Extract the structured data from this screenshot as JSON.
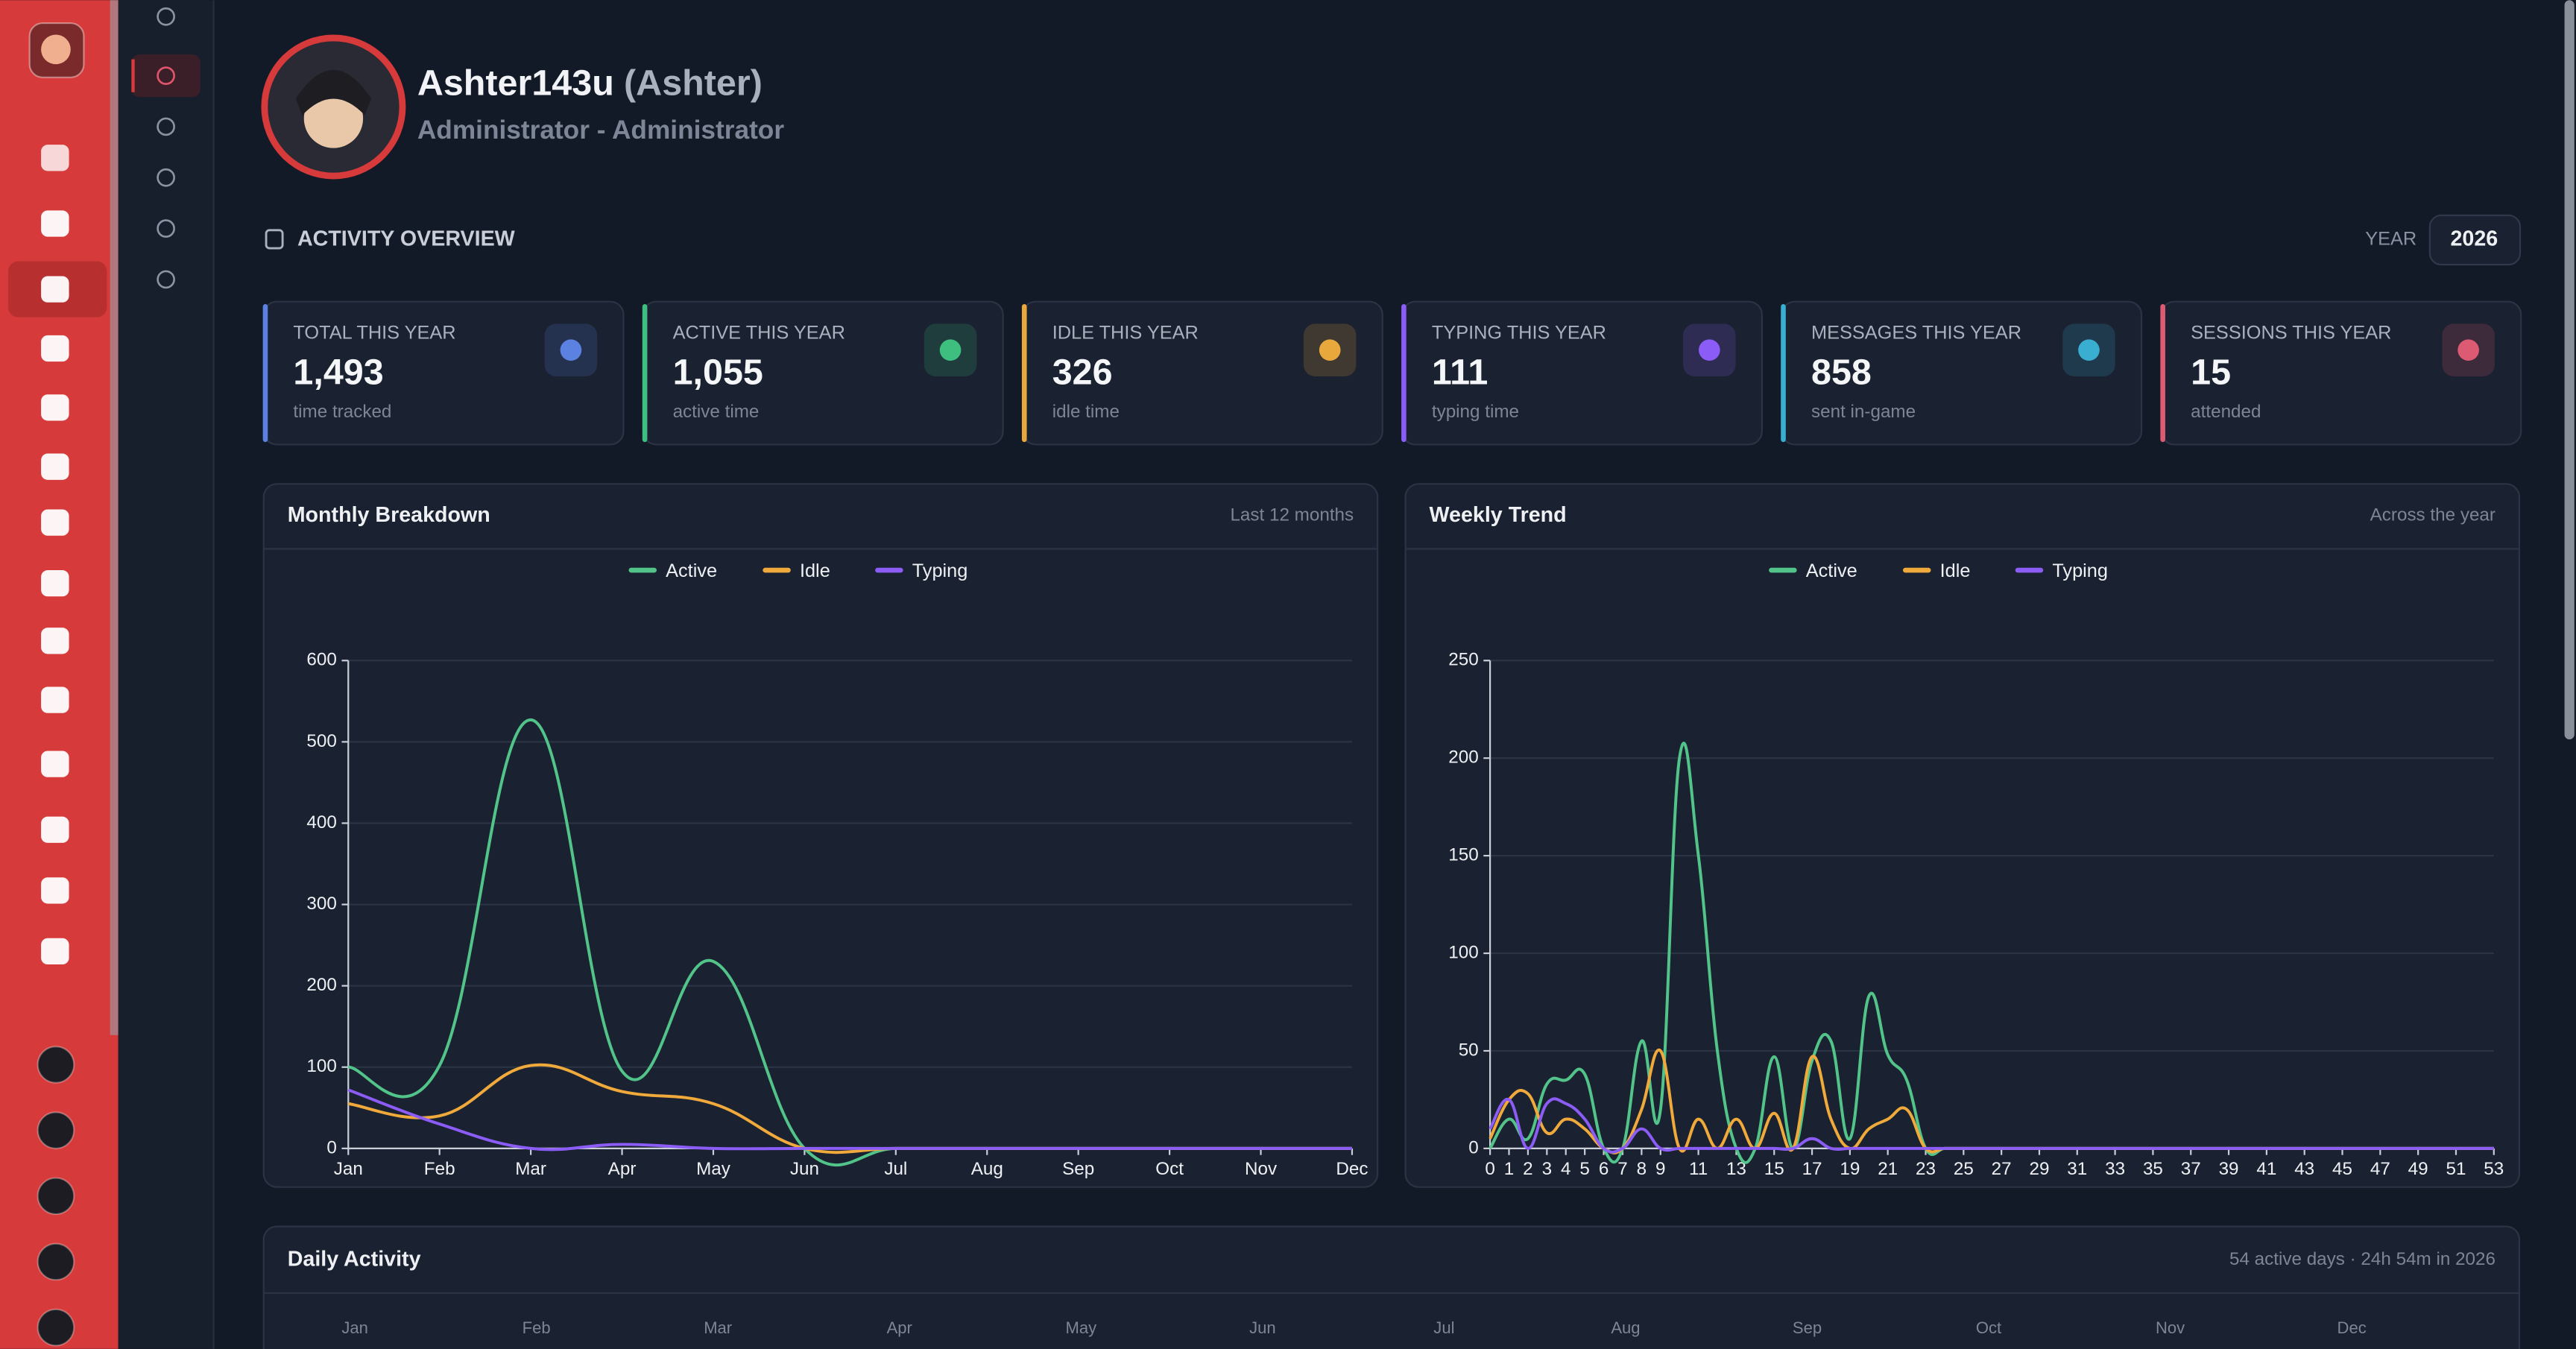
{
  "profile": {
    "username": "Ashter143u",
    "display_name": "(Ashter)",
    "role": "Administrator - Administrator"
  },
  "activity": {
    "title": "ACTIVITY OVERVIEW",
    "year_label": "YEAR",
    "year": "2026"
  },
  "stats": [
    {
      "label": "TOTAL THIS YEAR",
      "value": "1,493",
      "sub": "time tracked",
      "color": "#5b82e0"
    },
    {
      "label": "ACTIVE THIS YEAR",
      "value": "1,055",
      "sub": "active time",
      "color": "#3fbf7f"
    },
    {
      "label": "IDLE THIS YEAR",
      "value": "326",
      "sub": "idle time",
      "color": "#e9a83c"
    },
    {
      "label": "TYPING THIS YEAR",
      "value": "111",
      "sub": "typing time",
      "color": "#8b5cf6"
    },
    {
      "label": "MESSAGES THIS YEAR",
      "value": "858",
      "sub": "sent in-game",
      "color": "#3aaed0"
    },
    {
      "label": "SESSIONS THIS YEAR",
      "value": "15",
      "sub": "attended",
      "color": "#dc5a72"
    }
  ],
  "monthly": {
    "title": "Monthly Breakdown",
    "note": "Last 12 months",
    "chart_data": {
      "type": "line",
      "categories": [
        "Jan",
        "Feb",
        "Mar",
        "Apr",
        "May",
        "Jun",
        "Jul",
        "Aug",
        "Sep",
        "Oct",
        "Nov",
        "Dec"
      ],
      "series": [
        {
          "name": "Active",
          "color": "#52c48a",
          "values": [
            100,
            102,
            527,
            95,
            230,
            0,
            0,
            0,
            0,
            0,
            0,
            0
          ]
        },
        {
          "name": "Idle",
          "color": "#f0a93b",
          "values": [
            55,
            40,
            102,
            70,
            55,
            0,
            0,
            0,
            0,
            0,
            0,
            0
          ]
        },
        {
          "name": "Typing",
          "color": "#8b5cf6",
          "values": [
            72,
            30,
            0,
            5,
            0,
            0,
            0,
            0,
            0,
            0,
            0,
            0
          ]
        }
      ],
      "ylim": [
        0,
        600
      ],
      "yticks": [
        0,
        100,
        200,
        300,
        400,
        500,
        600
      ],
      "grid": true,
      "legend": "top"
    }
  },
  "weekly": {
    "title": "Weekly Trend",
    "note": "Across the year",
    "chart_data": {
      "type": "line",
      "x": [
        0,
        1,
        2,
        3,
        4,
        5,
        6,
        7,
        8,
        9,
        10,
        11,
        12,
        13,
        14,
        15,
        16,
        17,
        18,
        19,
        20,
        21,
        22,
        23,
        24,
        25,
        26,
        27,
        28,
        29,
        30,
        31,
        32,
        33,
        34,
        35,
        36,
        37,
        38,
        39,
        40,
        41,
        42,
        43,
        44,
        45,
        46,
        47,
        48,
        49,
        50,
        51,
        52,
        53
      ],
      "series": [
        {
          "name": "Active",
          "color": "#52c48a",
          "values": [
            0,
            15,
            5,
            33,
            35,
            38,
            0,
            0,
            55,
            20,
            200,
            150,
            50,
            0,
            0,
            47,
            0,
            45,
            55,
            5,
            78,
            48,
            35,
            0,
            0,
            0,
            0,
            0,
            0,
            0,
            0,
            0,
            0,
            0,
            0,
            0,
            0,
            0,
            0,
            0,
            0,
            0,
            0,
            0,
            0,
            0,
            0,
            0,
            0,
            0,
            0,
            0,
            0,
            0
          ]
        },
        {
          "name": "Idle",
          "color": "#f0a93b",
          "values": [
            5,
            25,
            28,
            8,
            15,
            10,
            0,
            0,
            20,
            50,
            0,
            15,
            0,
            15,
            0,
            18,
            0,
            47,
            15,
            0,
            10,
            15,
            20,
            0,
            0,
            0,
            0,
            0,
            0,
            0,
            0,
            0,
            0,
            0,
            0,
            0,
            0,
            0,
            0,
            0,
            0,
            0,
            0,
            0,
            0,
            0,
            0,
            0,
            0,
            0,
            0,
            0,
            0,
            0
          ]
        },
        {
          "name": "Typing",
          "color": "#8b5cf6",
          "values": [
            10,
            25,
            0,
            23,
            23,
            15,
            0,
            0,
            10,
            0,
            0,
            0,
            0,
            0,
            0,
            0,
            0,
            5,
            0,
            0,
            0,
            0,
            0,
            0,
            0,
            0,
            0,
            0,
            0,
            0,
            0,
            0,
            0,
            0,
            0,
            0,
            0,
            0,
            0,
            0,
            0,
            0,
            0,
            0,
            0,
            0,
            0,
            0,
            0,
            0,
            0,
            0,
            0,
            0
          ]
        }
      ],
      "xlim": [
        0,
        53
      ],
      "xticks": [
        0,
        1,
        2,
        3,
        4,
        5,
        6,
        7,
        8,
        9,
        11,
        13,
        15,
        17,
        19,
        21,
        23,
        25,
        27,
        29,
        31,
        33,
        35,
        37,
        39,
        41,
        43,
        45,
        47,
        49,
        51,
        53
      ],
      "ylim": [
        0,
        250
      ],
      "yticks": [
        0,
        50,
        100,
        150,
        200,
        250
      ],
      "grid": true,
      "legend": "top"
    }
  },
  "daily": {
    "title": "Daily Activity",
    "note": "54 active days · 24h 54m in 2026",
    "months": [
      "Jan",
      "Feb",
      "Mar",
      "Apr",
      "May",
      "Jun",
      "Jul",
      "Aug",
      "Sep",
      "Oct",
      "Nov",
      "Dec"
    ]
  }
}
